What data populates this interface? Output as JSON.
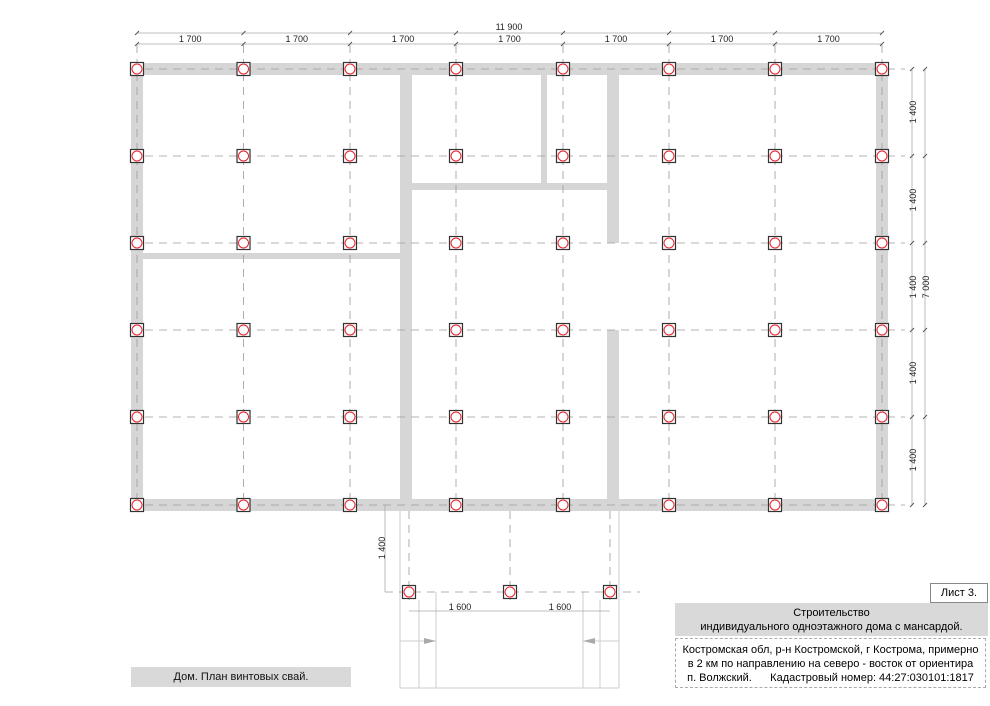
{
  "plan": {
    "total_width_label": "11 900",
    "bay_labels": [
      "1 700",
      "1 700",
      "1 700",
      "1 700",
      "1 700",
      "1 700",
      "1 700"
    ],
    "row_labels": [
      "1 400",
      "1 400",
      "1 400",
      "1 400",
      "1 400"
    ],
    "total_depth_label": "7 000",
    "porch_depth_label": "1 400",
    "porch_bay_labels": [
      "1 600",
      "1 600"
    ],
    "colors": {
      "wall": "#d6d6d6",
      "pile_circle": "#e8202a",
      "pile_square": "#333333",
      "axis": "#9a9a9a"
    }
  },
  "caption": "Дом. План винтовых свай.",
  "title_block": {
    "sheet": "Лист 3.",
    "title_line1": "Строительство",
    "title_line2": "индивидуального одноэтажного дома с мансардой.",
    "address_line1": "Костромская обл, р-н Костромской, г Кострома, примерно",
    "address_line2": "в 2 км по направлению на северо - восток от ориентира",
    "address_line3": "п. Волжский.      Кадастровый номер: 44:27:030101:1817"
  }
}
